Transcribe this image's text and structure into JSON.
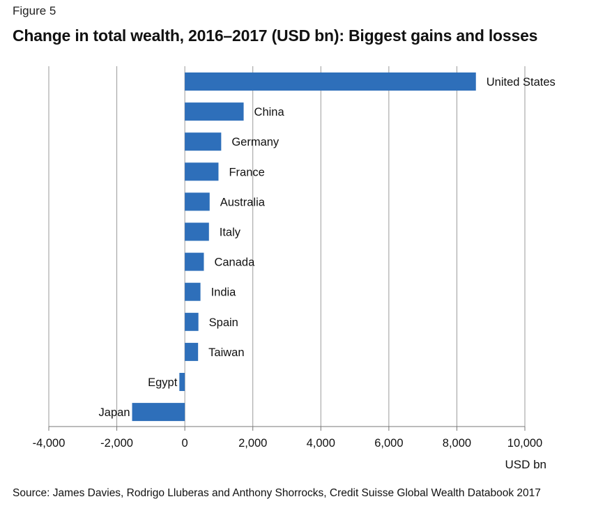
{
  "figure_label": "Figure 5",
  "source": "Source: James Davies, Rodrigo Lluberas and Anthony Shorrocks, Credit Suisse Global Wealth Databook 2017",
  "chart_data": {
    "type": "bar",
    "orientation": "horizontal",
    "title": "Change in total wealth, 2016–2017 (USD bn): Biggest gains and losses",
    "xlabel": "USD bn",
    "ylabel": "",
    "xlim": [
      -4000,
      10000
    ],
    "xticks": [
      -4000,
      -2000,
      0,
      2000,
      4000,
      6000,
      8000,
      10000
    ],
    "xtick_labels": [
      "-4,000",
      "-2,000",
      "0",
      "2,000",
      "4,000",
      "6,000",
      "8,000",
      "10,000"
    ],
    "grid": true,
    "bar_color": "#2e6fba",
    "categories": [
      "United States",
      "China",
      "Germany",
      "France",
      "Australia",
      "Italy",
      "Canada",
      "India",
      "Spain",
      "Taiwan",
      "Egypt",
      "Japan"
    ],
    "values": [
      8560,
      1730,
      1070,
      990,
      730,
      710,
      560,
      460,
      400,
      390,
      -160,
      -1550
    ]
  }
}
